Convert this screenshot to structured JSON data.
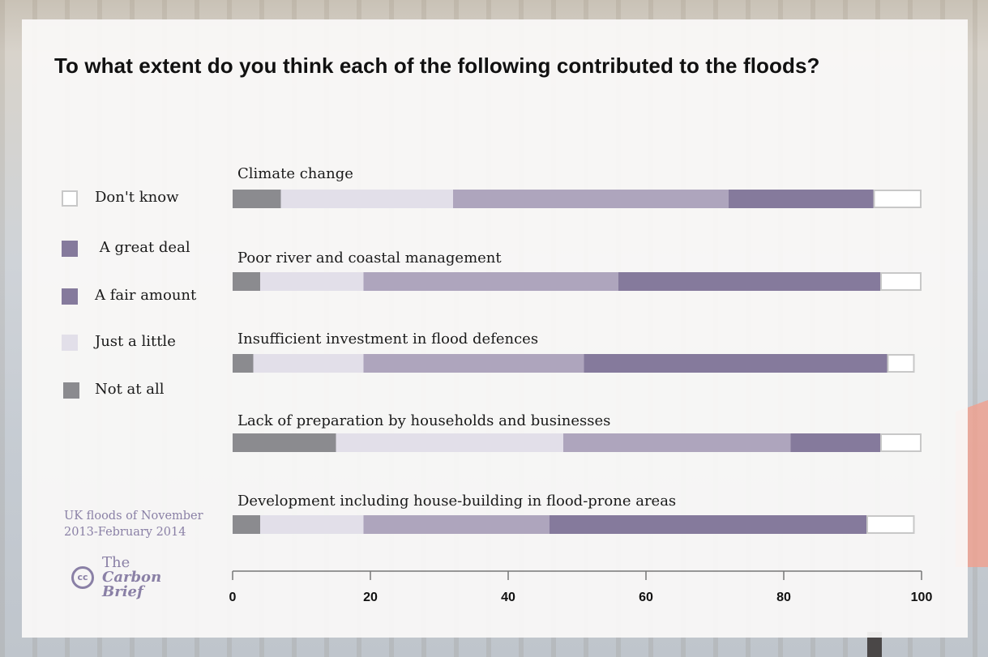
{
  "title": "To what extent do you think each of the following contributed to the floods?",
  "legend": [
    {
      "key": "dont_know",
      "label": "Don't know",
      "color": "#ffffff",
      "border": "#c8c8c8"
    },
    {
      "key": "great_deal",
      "label": " A great deal",
      "color": "#857a9c"
    },
    {
      "key": "fair_amount",
      "label": "A fair amount",
      "color": "#857a9c"
    },
    {
      "key": "just_little",
      "label": "Just a little",
      "color": "#e2dfe9"
    },
    {
      "key": "not_at_all",
      "label": "Not at all",
      "color": "#8b8b8f"
    }
  ],
  "credit": {
    "line1": "UK floods of November",
    "line2": "2013-February 2014"
  },
  "logo": {
    "icon": "creative-commons-icon",
    "cc_text": "cc",
    "line1": "The",
    "line2": "Carbon",
    "line3": "Brief"
  },
  "chart_data": {
    "type": "bar",
    "orientation": "horizontal",
    "stacked": true,
    "title": "To what extent do you think each of the following contributed to the floods?",
    "xlabel": "",
    "ylabel": "",
    "xlim": [
      0,
      100
    ],
    "xticks": [
      0,
      20,
      40,
      60,
      80,
      100
    ],
    "grid": false,
    "legend_position": "left",
    "categories": [
      "Climate change",
      "Poor river and coastal management",
      "Insufficient investment in flood defences",
      "Lack of preparation by households and businesses",
      "Development including house-building in flood-prone areas"
    ],
    "series": [
      {
        "name": "Not at all",
        "color": "#8b8b8f",
        "values": [
          7,
          4,
          3,
          15,
          4
        ]
      },
      {
        "name": "Just a little",
        "color": "#e2dfe9",
        "values": [
          25,
          15,
          16,
          33,
          15
        ]
      },
      {
        "name": "A fair amount",
        "color": "#aea5bd",
        "values": [
          40,
          37,
          32,
          33,
          27
        ]
      },
      {
        "name": "A great deal",
        "color": "#857a9c",
        "values": [
          21,
          38,
          44,
          13,
          46
        ]
      },
      {
        "name": "Don't know",
        "color": "#ffffff",
        "border": "#c8c8c8",
        "values": [
          7,
          6,
          4,
          6,
          7
        ]
      }
    ]
  }
}
